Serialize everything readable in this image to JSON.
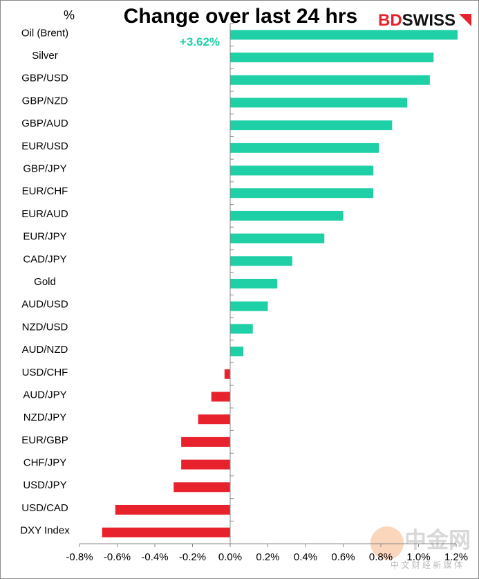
{
  "chart_data": {
    "type": "bar",
    "orientation": "horizontal",
    "title": "Change over last 24 hrs",
    "unit_label": "%",
    "brand": [
      "BD",
      "SWISS"
    ],
    "watermark": [
      "中金网",
      "中 文 财 经 新 媒 体"
    ],
    "categories": [
      "Oil (Brent)",
      "Silver",
      "GBP/USD",
      "GBP/NZD",
      "GBP/AUD",
      "EUR/USD",
      "GBP/JPY",
      "EUR/CHF",
      "EUR/AUD",
      "EUR/JPY",
      "CAD/JPY",
      "Gold",
      "AUD/USD",
      "NZD/USD",
      "AUD/NZD",
      "USD/CHF",
      "AUD/JPY",
      "NZD/JPY",
      "EUR/GBP",
      "CHF/JPY",
      "USD/JPY",
      "USD/CAD",
      "DXY Index"
    ],
    "values": [
      3.62,
      1.08,
      1.06,
      0.94,
      0.86,
      0.79,
      0.76,
      0.76,
      0.6,
      0.5,
      0.33,
      0.25,
      0.2,
      0.12,
      0.07,
      -0.03,
      -0.1,
      -0.17,
      -0.26,
      -0.26,
      -0.3,
      -0.61,
      -0.68
    ],
    "value_labels": [
      "+3.62%",
      null,
      null,
      null,
      null,
      null,
      null,
      null,
      null,
      null,
      null,
      null,
      null,
      null,
      null,
      null,
      null,
      null,
      null,
      null,
      null,
      null,
      null
    ],
    "positive_color": "#1fd0a6",
    "negative_color": "#e8222c",
    "xlim": [
      -0.8,
      1.2
    ],
    "xticks": [
      {
        "value": -0.8,
        "label": "-0.8%"
      },
      {
        "value": -0.6,
        "label": "-0.6%"
      },
      {
        "value": -0.4,
        "label": "-0.4%"
      },
      {
        "value": -0.2,
        "label": "-0.2%"
      },
      {
        "value": 0,
        "label": "0.0%"
      },
      {
        "value": 0.2,
        "label": "0.2%"
      },
      {
        "value": 0.4,
        "label": "0.4%"
      },
      {
        "value": 0.6,
        "label": "0.6%"
      },
      {
        "value": 0.8,
        "label": "0.8%"
      },
      {
        "value": 1.0,
        "label": "1.0%"
      },
      {
        "value": 1.2,
        "label": "1.2%"
      }
    ],
    "grid": false
  }
}
